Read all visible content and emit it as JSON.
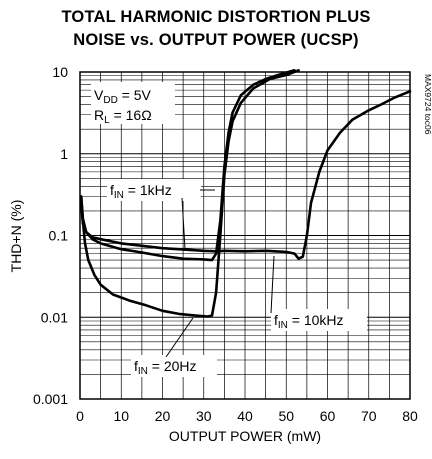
{
  "chart_data": {
    "type": "line",
    "title_line1": "TOTAL HARMONIC DISTORTION PLUS",
    "title_line2": "NOISE vs. OUTPUT POWER (UCSP)",
    "xlabel": "OUTPUT POWER (mW)",
    "ylabel": "THD+N (%)",
    "xlim": [
      0,
      80
    ],
    "ylim": [
      0.001,
      10
    ],
    "yscale": "log",
    "grid": true,
    "x_ticks": [
      {
        "value": 0,
        "label": "0"
      },
      {
        "value": 10,
        "label": "10"
      },
      {
        "value": 20,
        "label": "20"
      },
      {
        "value": 30,
        "label": "30"
      },
      {
        "value": 40,
        "label": "40"
      },
      {
        "value": 50,
        "label": "50"
      },
      {
        "value": 60,
        "label": "60"
      },
      {
        "value": 70,
        "label": "70"
      },
      {
        "value": 80,
        "label": "80"
      }
    ],
    "y_ticks": [
      {
        "value": 10,
        "label": "10"
      },
      {
        "value": 1,
        "label": "1"
      },
      {
        "value": 0.1,
        "label": "0.1"
      },
      {
        "value": 0.01,
        "label": "0.01"
      },
      {
        "value": 0.001,
        "label": "0.001"
      }
    ],
    "conditions": {
      "vdd": {
        "main": "V",
        "sub": "DD",
        "rest": " = 5V"
      },
      "rl": {
        "main": "R",
        "sub": "L",
        "rest": " = 16Ω"
      }
    },
    "part_code": "MAX9724 toc06",
    "series": [
      {
        "label_main": "f",
        "label_sub": "IN",
        "label_rest": " = 1kHz",
        "points": [
          [
            0.3,
            0.3
          ],
          [
            0.7,
            0.16
          ],
          [
            1.5,
            0.11
          ],
          [
            3,
            0.09
          ],
          [
            5,
            0.08
          ],
          [
            10,
            0.068
          ],
          [
            15,
            0.062
          ],
          [
            20,
            0.056
          ],
          [
            25,
            0.052
          ],
          [
            30,
            0.051
          ],
          [
            32,
            0.05
          ],
          [
            33,
            0.06
          ],
          [
            34,
            0.15
          ],
          [
            35,
            0.7
          ],
          [
            36,
            1.8
          ],
          [
            37,
            3.2
          ],
          [
            39,
            5.2
          ],
          [
            42,
            7
          ],
          [
            45,
            8.2
          ],
          [
            48,
            9.2
          ],
          [
            52,
            10.5
          ]
        ]
      },
      {
        "label_main": "f",
        "label_sub": "IN",
        "label_rest": " = 10kHz",
        "points": [
          [
            0.3,
            0.25
          ],
          [
            0.7,
            0.14
          ],
          [
            1.5,
            0.11
          ],
          [
            3,
            0.095
          ],
          [
            5,
            0.09
          ],
          [
            10,
            0.08
          ],
          [
            20,
            0.07
          ],
          [
            30,
            0.065
          ],
          [
            33,
            0.064
          ],
          [
            35,
            0.065
          ],
          [
            40,
            0.064
          ],
          [
            45,
            0.065
          ],
          [
            50,
            0.063
          ],
          [
            52,
            0.06
          ],
          [
            53,
            0.052
          ],
          [
            54,
            0.055
          ],
          [
            55,
            0.1
          ],
          [
            56,
            0.25
          ],
          [
            58,
            0.6
          ],
          [
            60,
            1.1
          ],
          [
            63,
            1.8
          ],
          [
            66,
            2.6
          ],
          [
            70,
            3.4
          ],
          [
            73,
            4
          ],
          [
            76,
            4.8
          ],
          [
            80,
            5.8
          ]
        ]
      },
      {
        "label_main": "f",
        "label_sub": "IN",
        "label_rest": " = 20Hz",
        "points": [
          [
            0.3,
            0.3
          ],
          [
            0.7,
            0.15
          ],
          [
            1.2,
            0.08
          ],
          [
            2,
            0.05
          ],
          [
            3.5,
            0.033
          ],
          [
            5,
            0.025
          ],
          [
            8,
            0.019
          ],
          [
            12,
            0.016
          ],
          [
            16,
            0.014
          ],
          [
            20,
            0.012
          ],
          [
            24,
            0.011
          ],
          [
            28,
            0.0105
          ],
          [
            31,
            0.0102
          ],
          [
            32,
            0.0105
          ],
          [
            33,
            0.02
          ],
          [
            34,
            0.1
          ],
          [
            35,
            0.55
          ],
          [
            36,
            1.4
          ],
          [
            37,
            2.5
          ],
          [
            39,
            4.2
          ],
          [
            42,
            6.3
          ],
          [
            46,
            8.2
          ],
          [
            50,
            9.2
          ],
          [
            53,
            10.5
          ]
        ]
      }
    ]
  }
}
